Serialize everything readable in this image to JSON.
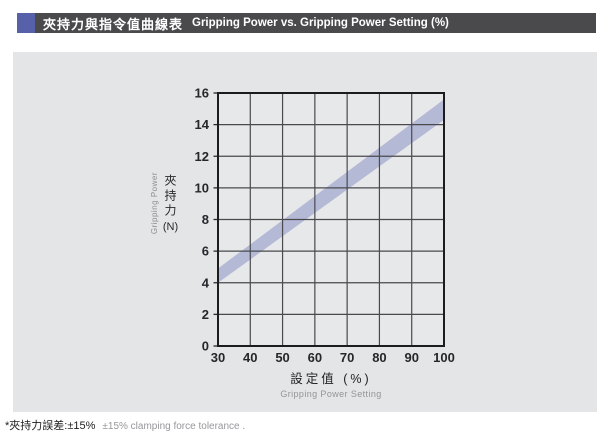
{
  "header": {
    "bar_color": "#4a4a4c",
    "accent_color": "#5661a9",
    "title_zh": "夾持力與指令值曲線表",
    "title_en": "Gripping Power vs. Gripping Power Setting (%)"
  },
  "panel": {
    "bg_color": "#e4e5e7"
  },
  "chart_data": {
    "type": "area",
    "title": "夾持力與指令值曲線表 Gripping Power vs. Gripping Power Setting (%)",
    "band_color": "#b4b9d5",
    "x_label_zh": "設定值 (%)",
    "x_label_en": "Gripping Power Setting",
    "y_label_zh": "夾持力",
    "y_label_unit": "(N)",
    "y_label_en": "Gripping Power",
    "xlim": [
      30,
      100
    ],
    "ylim": [
      0,
      16
    ],
    "x_ticks": [
      30,
      40,
      50,
      60,
      70,
      80,
      90,
      100
    ],
    "y_ticks": [
      0,
      2,
      4,
      6,
      8,
      10,
      12,
      14,
      16
    ],
    "grid": true,
    "legend": "none",
    "series": [
      {
        "name": "band_upper",
        "x": [
          30,
          100
        ],
        "values": [
          4.9,
          15.6
        ]
      },
      {
        "name": "band_lower",
        "x": [
          30,
          100
        ],
        "values": [
          4.0,
          14.3
        ]
      }
    ]
  },
  "footnote": {
    "zh": "*夾持力誤差:±15%",
    "en": "±15% clamping force tolerance ."
  }
}
